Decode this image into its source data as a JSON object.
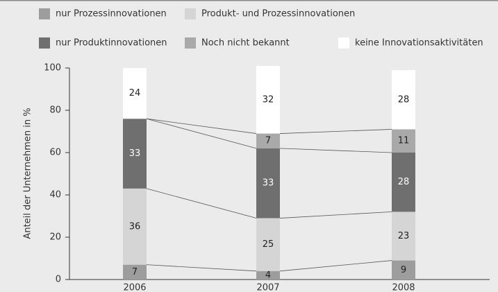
{
  "chart_data": {
    "type": "stacked_bar",
    "y_label": "Anteil der Unternehmen in %",
    "categories": [
      "2006",
      "2007",
      "2008"
    ],
    "series": [
      {
        "name": "nur Prozessinnovationen",
        "color": "#9d9d9d",
        "values": [
          7,
          4,
          9
        ]
      },
      {
        "name": "Produkt- und Prozessinnovationen",
        "color": "#d5d5d5",
        "values": [
          36,
          25,
          23
        ]
      },
      {
        "name": "nur Produktinnovationen",
        "color": "#6f6f6f",
        "values": [
          33,
          33,
          28
        ]
      },
      {
        "name": "Noch nicht bekannt",
        "color": "#a9a9a9",
        "values": [
          null,
          7,
          11
        ]
      },
      {
        "name": "keine Innovationsaktivitäten",
        "color": "#ffffff",
        "values": [
          24,
          32,
          28
        ]
      }
    ],
    "ylim": [
      0,
      100
    ],
    "yticks": [
      0,
      20,
      40,
      60,
      80,
      100
    ]
  }
}
